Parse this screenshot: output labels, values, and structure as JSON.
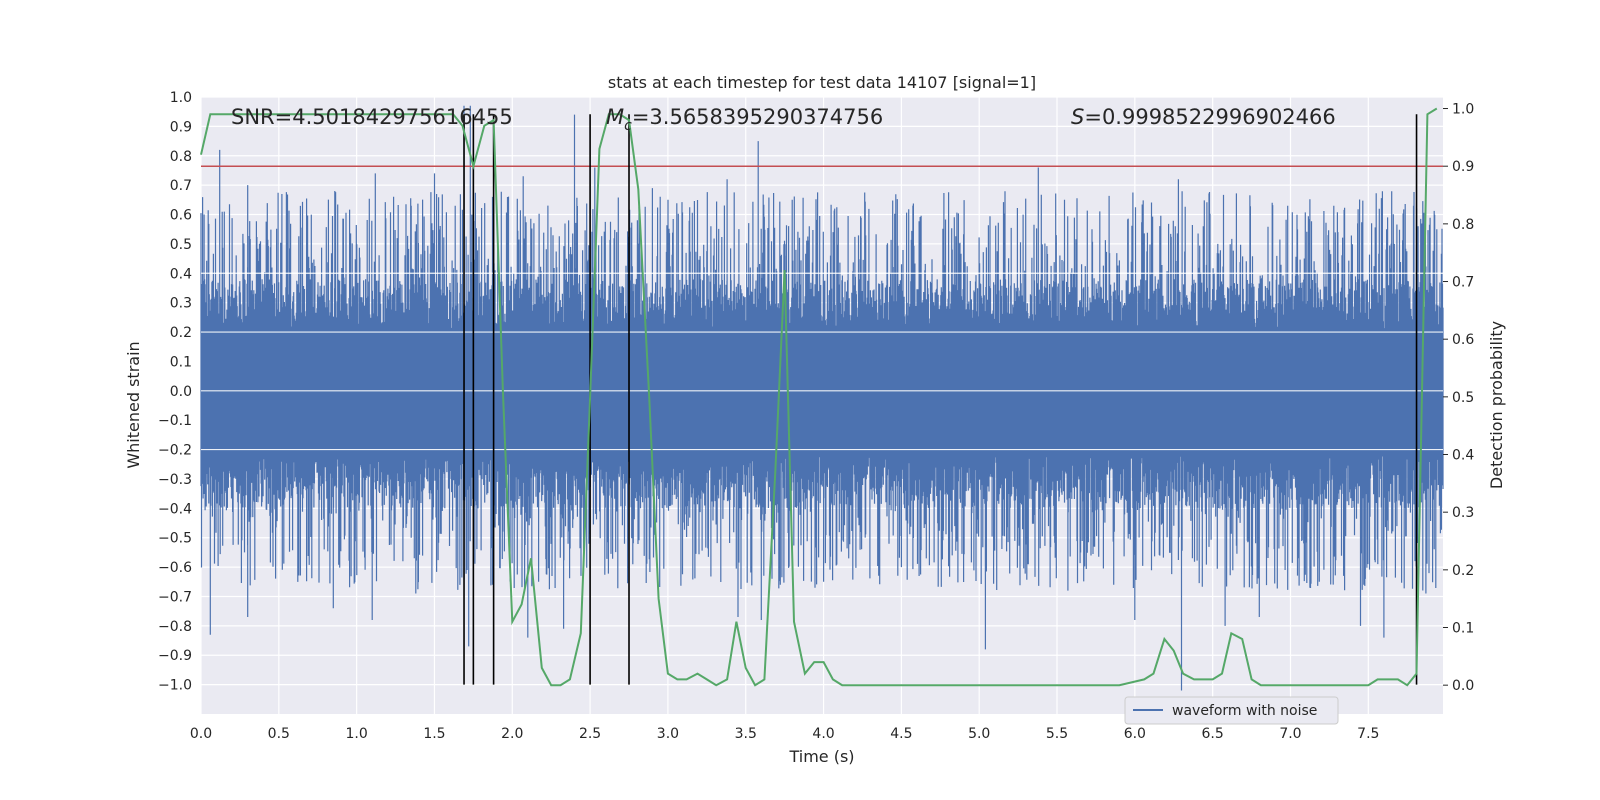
{
  "chart_data": {
    "type": "line",
    "title": "stats at each timestep for test data 14107 [signal=1]",
    "xlabel": "Time (s)",
    "ylabel": "Whitened strain",
    "ylabel_right": "Detection probability",
    "xlim": [
      0.0,
      7.98
    ],
    "ylim": [
      -1.1,
      1.0
    ],
    "ylim_right": [
      -0.05,
      1.02
    ],
    "x_ticks": [
      "0.0",
      "0.5",
      "1.0",
      "1.5",
      "2.0",
      "2.5",
      "3.0",
      "3.5",
      "4.0",
      "4.5",
      "5.0",
      "5.5",
      "6.0",
      "6.5",
      "7.0",
      "7.5"
    ],
    "y_ticks": [
      "1.0",
      "0.9",
      "0.8",
      "0.7",
      "0.6",
      "0.5",
      "0.4",
      "0.3",
      "0.2",
      "0.1",
      "0.0",
      "−0.1",
      "−0.2",
      "−0.3",
      "−0.4",
      "−0.5",
      "−0.6",
      "−0.7",
      "−0.8",
      "−0.9",
      "−1.0"
    ],
    "y_ticks_right": [
      "1.0",
      "0.9",
      "0.8",
      "0.7",
      "0.6",
      "0.5",
      "0.4",
      "0.3",
      "0.2",
      "0.1",
      "0.0"
    ],
    "grid": true,
    "legend_position": "bottom-right",
    "annotations": {
      "snr": "SNR=4.501842975616455",
      "mc_prefix": "M",
      "mc_sub": "c",
      "mc_value": "=3.5658395290374756",
      "s_symbol": "S",
      "s_value": "=0.9998522996902466"
    },
    "threshold_right": 0.9,
    "vlines_x": [
      1.69,
      1.75,
      1.88,
      2.5,
      2.75,
      7.81
    ],
    "series": [
      {
        "name": "waveform with noise",
        "color": "#4c72b0",
        "envelope": {
          "x_start": 0.0,
          "x_end": 7.98,
          "typical_upper": 0.38,
          "typical_lower": -0.4
        },
        "peaks_up": [
          [
            0.02,
            0.6
          ],
          [
            0.12,
            0.82
          ],
          [
            0.3,
            0.7
          ],
          [
            0.52,
            0.67
          ],
          [
            0.86,
            0.68
          ],
          [
            1.12,
            0.74
          ],
          [
            1.5,
            0.74
          ],
          [
            1.69,
            0.97
          ],
          [
            1.73,
            0.97
          ],
          [
            2.07,
            0.73
          ],
          [
            2.4,
            0.94
          ],
          [
            2.53,
            0.76
          ],
          [
            2.9,
            0.69
          ],
          [
            3.38,
            0.72
          ],
          [
            3.58,
            0.85
          ],
          [
            3.75,
            0.46
          ],
          [
            5.38,
            0.76
          ],
          [
            6.28,
            0.72
          ],
          [
            7.82,
            0.56
          ],
          [
            7.94,
            0.55
          ]
        ],
        "peaks_down": [
          [
            0.06,
            -0.83
          ],
          [
            0.3,
            -0.77
          ],
          [
            0.85,
            -0.74
          ],
          [
            1.1,
            -0.78
          ],
          [
            1.38,
            -0.69
          ],
          [
            1.72,
            -0.87
          ],
          [
            2.1,
            -0.84
          ],
          [
            2.33,
            -0.81
          ],
          [
            3.45,
            -0.77
          ],
          [
            3.6,
            -0.78
          ],
          [
            4.0,
            -0.65
          ],
          [
            4.5,
            -0.6
          ],
          [
            5.04,
            -0.88
          ],
          [
            5.57,
            -0.68
          ],
          [
            6.0,
            -0.78
          ],
          [
            6.3,
            -1.02
          ],
          [
            6.58,
            -0.8
          ],
          [
            6.8,
            -0.77
          ],
          [
            7.45,
            -0.8
          ],
          [
            7.6,
            -0.84
          ],
          [
            7.87,
            -0.69
          ]
        ]
      },
      {
        "name": "",
        "color": "#55a868",
        "axis": "right",
        "x": [
          0.0,
          0.06,
          0.12,
          1.62,
          1.68,
          1.75,
          1.82,
          1.88,
          1.94,
          2.0,
          2.06,
          2.12,
          2.19,
          2.25,
          2.31,
          2.37,
          2.44,
          2.5,
          2.56,
          2.62,
          2.69,
          2.75,
          2.81,
          2.88,
          2.94,
          3.0,
          3.06,
          3.12,
          3.19,
          3.25,
          3.31,
          3.38,
          3.44,
          3.5,
          3.56,
          3.62,
          3.69,
          3.75,
          3.81,
          3.88,
          3.94,
          4.0,
          4.06,
          4.12,
          4.5,
          5.0,
          5.6,
          5.9,
          6.06,
          6.12,
          6.19,
          6.25,
          6.31,
          6.38,
          6.44,
          6.5,
          6.56,
          6.62,
          6.69,
          6.75,
          6.81,
          6.94,
          7.0,
          7.5,
          7.56,
          7.62,
          7.69,
          7.75,
          7.81,
          7.88,
          7.94
        ],
        "values": [
          0.92,
          0.99,
          0.99,
          0.99,
          0.97,
          0.9,
          0.97,
          0.98,
          0.51,
          0.11,
          0.14,
          0.22,
          0.03,
          0.0,
          0.0,
          0.01,
          0.09,
          0.5,
          0.93,
          0.99,
          0.99,
          0.98,
          0.86,
          0.5,
          0.15,
          0.02,
          0.01,
          0.01,
          0.02,
          0.01,
          0.0,
          0.01,
          0.11,
          0.03,
          0.0,
          0.01,
          0.37,
          0.72,
          0.11,
          0.02,
          0.04,
          0.04,
          0.01,
          0.0,
          0.0,
          0.0,
          0.0,
          0.0,
          0.01,
          0.02,
          0.08,
          0.06,
          0.02,
          0.01,
          0.01,
          0.01,
          0.02,
          0.09,
          0.08,
          0.01,
          0.0,
          0.0,
          0.0,
          0.0,
          0.01,
          0.01,
          0.01,
          0.0,
          0.02,
          0.99,
          1.0
        ]
      }
    ]
  }
}
